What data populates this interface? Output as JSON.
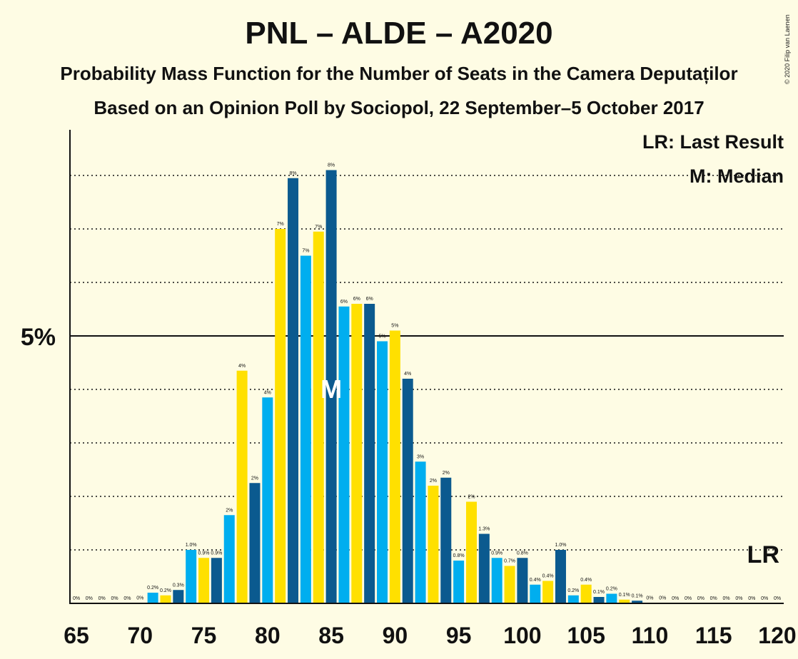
{
  "header": {
    "title": "PNL – ALDE – A2020",
    "subtitle": "Probability Mass Function for the Number of Seats in the Camera Deputaților",
    "subtitle2": "Based on an Opinion Poll by Sociopol, 22 September–5 October 2017",
    "copyright": "© 2020 Filip van Laenen"
  },
  "legend": {
    "last_result": "LR: Last Result",
    "median": "M: Median"
  },
  "chart_data": {
    "type": "bar",
    "x": [
      65,
      66,
      67,
      68,
      69,
      70,
      71,
      72,
      73,
      74,
      75,
      76,
      77,
      78,
      79,
      80,
      81,
      82,
      83,
      84,
      85,
      86,
      87,
      88,
      89,
      90,
      91,
      92,
      93,
      94,
      95,
      96,
      97,
      98,
      99,
      100,
      101,
      102,
      103,
      104,
      105,
      106,
      107,
      108,
      109,
      110,
      111,
      112,
      113,
      114,
      115,
      116,
      117,
      118,
      119,
      120
    ],
    "values": [
      0,
      0,
      0,
      0,
      0,
      0.01,
      0.2,
      0.15,
      0.25,
      1.0,
      0.85,
      0.85,
      1.65,
      4.35,
      2.25,
      3.85,
      7.0,
      7.95,
      6.5,
      6.95,
      8.1,
      5.55,
      5.6,
      5.6,
      4.9,
      5.1,
      4.2,
      2.65,
      2.2,
      2.35,
      0.8,
      1.9,
      1.3,
      0.85,
      0.7,
      0.85,
      0.35,
      0.42,
      1.0,
      0.15,
      0.35,
      0.12,
      0.18,
      0.07,
      0.05,
      0.01,
      0.01,
      0,
      0,
      0,
      0,
      0,
      0,
      0,
      0,
      0
    ],
    "labels": [
      "0%",
      "0%",
      "0%",
      "0%",
      "0%",
      "0%",
      "0.2%",
      "0.2%",
      "0.3%",
      "1.0%",
      "0.9%",
      "0.9%",
      "2%",
      "4%",
      "2%",
      "4%",
      "7%",
      "8%",
      "7%",
      "7%",
      "8%",
      "6%",
      "6%",
      "6%",
      "5%",
      "5%",
      "4%",
      "3%",
      "2%",
      "2%",
      "0.8%",
      "2%",
      "1.3%",
      "0.9%",
      "0.7%",
      "0.8%",
      "0.4%",
      "0.4%",
      "1.0%",
      "0.2%",
      "0.4%",
      "0.1%",
      "0.2%",
      "0.1%",
      "0.1%",
      "0%",
      "0%",
      "0%",
      "0%",
      "0%",
      "0%",
      "0%",
      "0%",
      "0%",
      "0%",
      "0%"
    ],
    "ylim": [
      0,
      8.8
    ],
    "y_tick": {
      "value": 5,
      "label": "5%"
    },
    "gridlines": [
      1,
      2,
      3,
      4,
      6,
      7,
      8
    ],
    "xticks": [
      "65",
      "70",
      "75",
      "80",
      "85",
      "90",
      "95",
      "100",
      "105",
      "110",
      "115",
      "120"
    ],
    "median": {
      "seat": 85,
      "label": "M"
    },
    "last_result": {
      "seat": 120,
      "label": "LR"
    },
    "colors": {
      "dark": "#0b5a8f",
      "light": "#00aeef",
      "yellow": "#ffe000",
      "background": "#fefce4"
    }
  }
}
